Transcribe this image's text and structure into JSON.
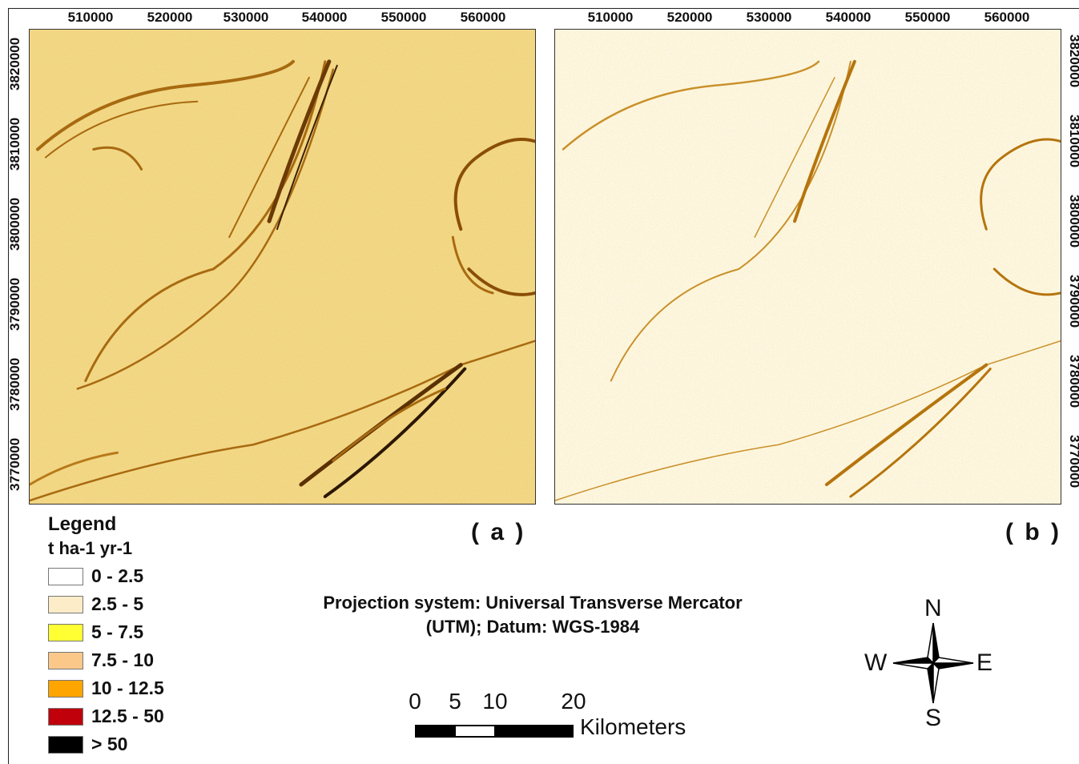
{
  "x_ticks": [
    "510000",
    "520000",
    "530000",
    "540000",
    "550000",
    "560000"
  ],
  "y_ticks": [
    "3820000",
    "3810000",
    "3800000",
    "3790000",
    "3780000",
    "3770000"
  ],
  "panels": [
    {
      "label": "( a )",
      "description_tone": "higher erosion"
    },
    {
      "label": "( b )",
      "description_tone": "lower erosion"
    }
  ],
  "legend": {
    "title": "Legend",
    "unit": "t ha-1 yr-1",
    "classes": [
      {
        "label": "0 - 2.5",
        "color": "#ffffff"
      },
      {
        "label": "2.5 - 5",
        "color": "#fdecc8"
      },
      {
        "label": "5 - 7.5",
        "color": "#ffff33"
      },
      {
        "label": "7.5 - 10",
        "color": "#fcc88a"
      },
      {
        "label": "10 - 12.5",
        "color": "#ffa500"
      },
      {
        "label": "12.5 - 50",
        "color": "#c0000b"
      },
      {
        "label": "> 50",
        "color": "#000000"
      }
    ]
  },
  "projection": {
    "line1": "Projection system: Universal Transverse Mercator",
    "line2": "(UTM); Datum: WGS-1984"
  },
  "scalebar": {
    "ticks": [
      "0",
      "5",
      "10",
      "20"
    ],
    "unit": "Kilometers"
  },
  "north_arrow": {
    "n": "N",
    "s": "S",
    "e": "E",
    "w": "W"
  }
}
